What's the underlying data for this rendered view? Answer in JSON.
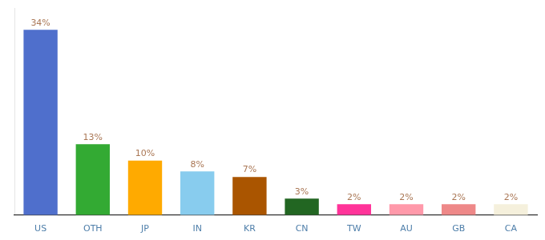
{
  "chart_data": {
    "type": "bar",
    "categories": [
      "US",
      "OTH",
      "JP",
      "IN",
      "KR",
      "CN",
      "TW",
      "AU",
      "GB",
      "CA"
    ],
    "values": [
      34,
      13,
      10,
      8,
      7,
      3,
      2,
      2,
      2,
      2
    ],
    "value_labels": [
      "34%",
      "13%",
      "10%",
      "8%",
      "7%",
      "3%",
      "2%",
      "2%",
      "2%",
      "2%"
    ],
    "colors": [
      "#4f6fcc",
      "#33aa33",
      "#ffaa00",
      "#88ccee",
      "#aa5500",
      "#226622",
      "#ff3399",
      "#ff99aa",
      "#ee8888",
      "#f5f0dc"
    ],
    "ylim": [
      0,
      38
    ],
    "data_labels": true,
    "tick_labels": "x",
    "grid": false
  }
}
